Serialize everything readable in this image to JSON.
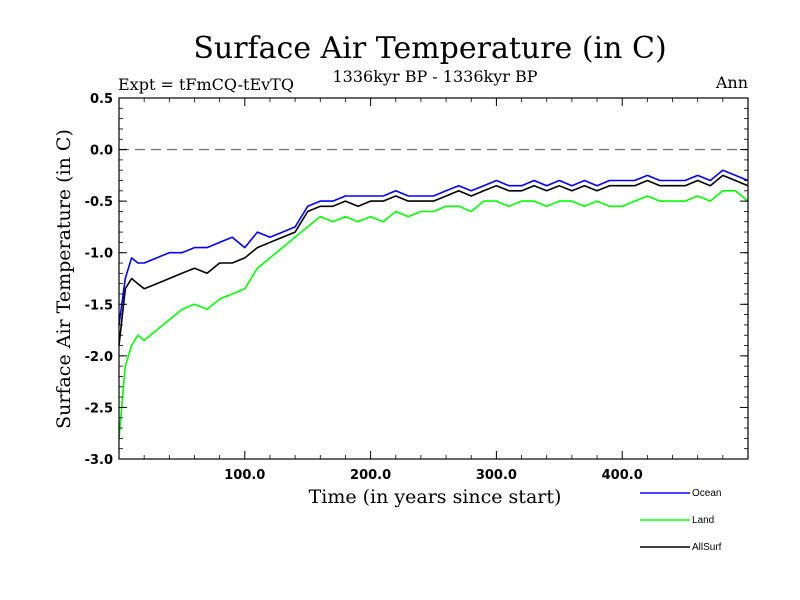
{
  "chart_data": {
    "type": "line",
    "title": "Surface Air Temperature (in C)",
    "subtitle": "1336kyr BP - 1336kyr BP",
    "experiment": "Expt = tFmCQ-tEvTQ",
    "season": "Ann",
    "xlabel": "Time (in years since start)",
    "ylabel": "Surface Air Temperature (in C)",
    "xlim": [
      0,
      500
    ],
    "ylim": [
      -3.0,
      0.5
    ],
    "xticks": [
      100,
      200,
      300,
      400
    ],
    "xtick_labels": [
      "100.0",
      "200.0",
      "300.0",
      "400.0"
    ],
    "yticks": [
      0.5,
      0.0,
      -0.5,
      -1.0,
      -1.5,
      -2.0,
      -2.5,
      -3.0
    ],
    "ytick_labels": [
      "0.5",
      "0.0",
      "-0.5",
      "-1.0",
      "-1.5",
      "-2.0",
      "-2.5",
      "-3.0"
    ],
    "reference_line": 0.0,
    "series": [
      {
        "name": "Ocean",
        "color": "#0000ff",
        "x": [
          0,
          5,
          10,
          15,
          20,
          30,
          40,
          50,
          60,
          70,
          80,
          90,
          100,
          110,
          120,
          130,
          140,
          150,
          160,
          170,
          180,
          190,
          200,
          210,
          220,
          230,
          240,
          250,
          260,
          270,
          280,
          290,
          300,
          310,
          320,
          330,
          340,
          350,
          360,
          370,
          380,
          390,
          400,
          410,
          420,
          430,
          440,
          450,
          460,
          470,
          480,
          490,
          500
        ],
        "values": [
          -1.7,
          -1.25,
          -1.05,
          -1.1,
          -1.1,
          -1.05,
          -1.0,
          -1.0,
          -0.95,
          -0.95,
          -0.9,
          -0.85,
          -0.95,
          -0.8,
          -0.85,
          -0.8,
          -0.75,
          -0.55,
          -0.5,
          -0.5,
          -0.45,
          -0.45,
          -0.45,
          -0.45,
          -0.4,
          -0.45,
          -0.45,
          -0.45,
          -0.4,
          -0.35,
          -0.4,
          -0.35,
          -0.3,
          -0.35,
          -0.35,
          -0.3,
          -0.35,
          -0.3,
          -0.35,
          -0.3,
          -0.35,
          -0.3,
          -0.3,
          -0.3,
          -0.25,
          -0.3,
          -0.3,
          -0.3,
          -0.25,
          -0.3,
          -0.2,
          -0.25,
          -0.3
        ]
      },
      {
        "name": "Land",
        "color": "#00ff00",
        "x": [
          0,
          5,
          10,
          15,
          20,
          30,
          40,
          50,
          60,
          70,
          80,
          90,
          100,
          110,
          120,
          130,
          140,
          150,
          160,
          170,
          180,
          190,
          200,
          210,
          220,
          230,
          240,
          250,
          260,
          270,
          280,
          290,
          300,
          310,
          320,
          330,
          340,
          350,
          360,
          370,
          380,
          390,
          400,
          410,
          420,
          430,
          440,
          450,
          460,
          470,
          480,
          490,
          500
        ],
        "values": [
          -2.8,
          -2.1,
          -1.9,
          -1.8,
          -1.85,
          -1.75,
          -1.65,
          -1.55,
          -1.5,
          -1.55,
          -1.45,
          -1.4,
          -1.35,
          -1.15,
          -1.05,
          -0.95,
          -0.85,
          -0.75,
          -0.65,
          -0.7,
          -0.65,
          -0.7,
          -0.65,
          -0.7,
          -0.6,
          -0.65,
          -0.6,
          -0.6,
          -0.55,
          -0.55,
          -0.6,
          -0.5,
          -0.5,
          -0.55,
          -0.5,
          -0.5,
          -0.55,
          -0.5,
          -0.5,
          -0.55,
          -0.5,
          -0.55,
          -0.55,
          -0.5,
          -0.45,
          -0.5,
          -0.5,
          -0.5,
          -0.45,
          -0.5,
          -0.4,
          -0.4,
          -0.5
        ]
      },
      {
        "name": "AllSurf",
        "color": "#000000",
        "x": [
          0,
          5,
          10,
          15,
          20,
          30,
          40,
          50,
          60,
          70,
          80,
          90,
          100,
          110,
          120,
          130,
          140,
          150,
          160,
          170,
          180,
          190,
          200,
          210,
          220,
          230,
          240,
          250,
          260,
          270,
          280,
          290,
          300,
          310,
          320,
          330,
          340,
          350,
          360,
          370,
          380,
          390,
          400,
          410,
          420,
          430,
          440,
          450,
          460,
          470,
          480,
          490,
          500
        ],
        "values": [
          -1.9,
          -1.35,
          -1.25,
          -1.3,
          -1.35,
          -1.3,
          -1.25,
          -1.2,
          -1.15,
          -1.2,
          -1.1,
          -1.1,
          -1.05,
          -0.95,
          -0.9,
          -0.85,
          -0.8,
          -0.6,
          -0.55,
          -0.55,
          -0.5,
          -0.55,
          -0.5,
          -0.5,
          -0.45,
          -0.5,
          -0.5,
          -0.5,
          -0.45,
          -0.4,
          -0.45,
          -0.4,
          -0.35,
          -0.4,
          -0.4,
          -0.35,
          -0.4,
          -0.35,
          -0.4,
          -0.35,
          -0.4,
          -0.35,
          -0.35,
          -0.35,
          -0.3,
          -0.35,
          -0.35,
          -0.35,
          -0.3,
          -0.35,
          -0.25,
          -0.3,
          -0.35
        ]
      }
    ]
  }
}
